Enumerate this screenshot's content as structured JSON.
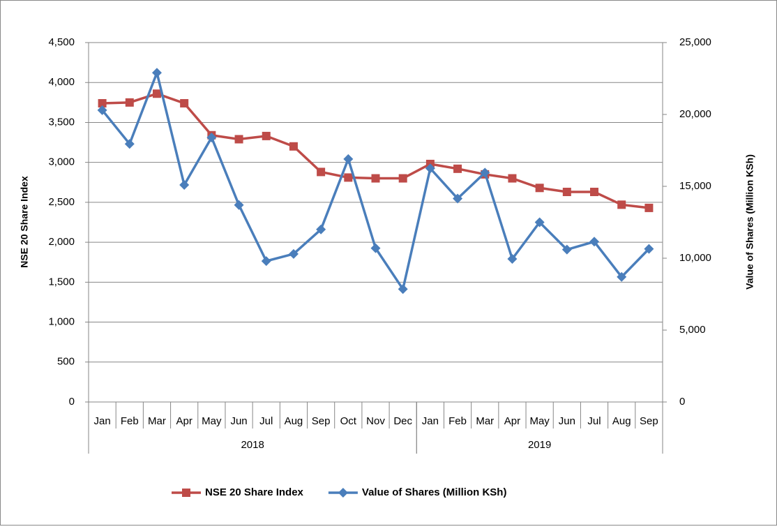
{
  "chart_data": {
    "type": "line",
    "y_label": "NSE 20 Share Index",
    "y2_label": "Value of Shares (Million KSh)",
    "categories": [
      "Jan",
      "Feb",
      "Mar",
      "Apr",
      "May",
      "Jun",
      "Jul",
      "Aug",
      "Sep",
      "Oct",
      "Nov",
      "Dec",
      "Jan",
      "Feb",
      "Mar",
      "Apr",
      "May",
      "Jun",
      "Jul",
      "Aug",
      "Sep"
    ],
    "groups": [
      {
        "label": "2018",
        "count": 12
      },
      {
        "label": "2019",
        "count": 9
      }
    ],
    "series": [
      {
        "name": "NSE 20 Share Index",
        "color": "#be4b48",
        "marker": "square",
        "values": [
          3740,
          3750,
          3860,
          3740,
          3340,
          3290,
          3330,
          3200,
          2880,
          2810,
          2800,
          2800,
          2980,
          2920,
          2850,
          2800,
          2680,
          2630,
          2630,
          2470,
          2430
        ]
      },
      {
        "name": "Value of Shares (Million KSh)",
        "color": "#4a7ebb",
        "marker": "diamond",
        "axis": "y2",
        "values": [
          20300,
          17950,
          22900,
          15100,
          18400,
          13700,
          9800,
          10300,
          12000,
          16900,
          10700,
          7850,
          16250,
          14150,
          15950,
          9950,
          12500,
          10600,
          11150,
          8700,
          10650
        ]
      }
    ],
    "ylim": [
      0,
      4500
    ],
    "yticks": [
      0,
      500,
      {
        "value": 1000,
        "label": "1,000"
      },
      {
        "value": 1500,
        "label": "1,500"
      },
      {
        "value": 2000,
        "label": "2,000"
      },
      {
        "value": 2500,
        "label": "2,500"
      },
      {
        "value": 3000,
        "label": "3,000"
      },
      {
        "value": 3500,
        "label": "3,500"
      },
      {
        "value": 4000,
        "label": "4,000"
      },
      {
        "value": 4500,
        "label": "4,500"
      }
    ],
    "y2lim": [
      0,
      25000
    ],
    "y2ticks": [
      0,
      {
        "value": 5000,
        "label": "5,000"
      },
      {
        "value": 10000,
        "label": "10,000"
      },
      {
        "value": 15000,
        "label": "15,000"
      },
      {
        "value": 20000,
        "label": "20,000"
      },
      {
        "value": 25000,
        "label": "25,000"
      }
    ],
    "grid": true,
    "legend": "bottom"
  }
}
